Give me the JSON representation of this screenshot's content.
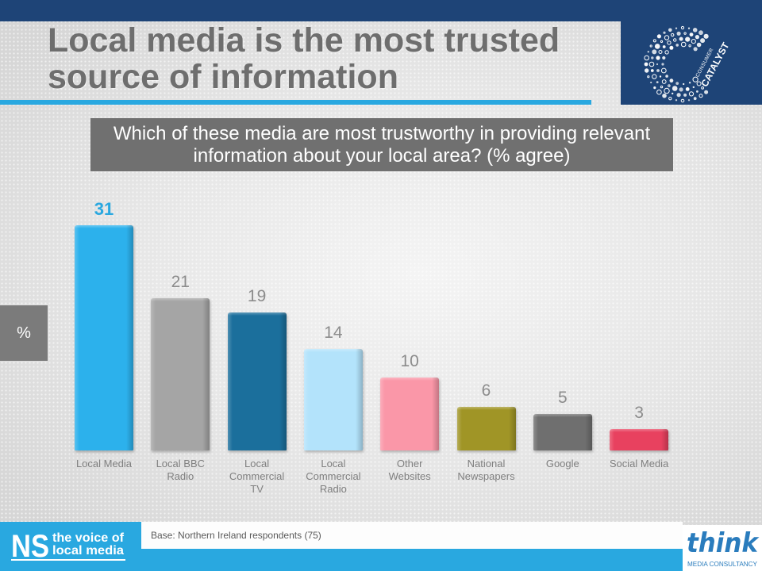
{
  "header": {
    "title": "Local media is the most trusted source of information"
  },
  "base_note": "Base: Northern Ireland respondents (75)",
  "logos": {
    "consumer_catalyst": {
      "line1": "CONSUMER",
      "line2": "CATALYST"
    },
    "ns": {
      "mark": "NS",
      "line1": "the voice of",
      "line2": "local media"
    },
    "think": {
      "mark": "think",
      "tagline": "MEDIA CONSULTANCY"
    }
  },
  "colors": {
    "brand_navy": "#1e4477",
    "brand_cyan": "#29a8e0",
    "title_gray": "#6e6e6e",
    "panel_gray": "#707070",
    "value_highlight": "#29a8e0",
    "value_label": "#8c8c8c",
    "think_blue": "#2a7cbd"
  },
  "chart_data": {
    "type": "bar",
    "title": "Which of these media are most trustworthy in providing relevant information about your local area? (% agree)",
    "xlabel": "",
    "ylabel": "%",
    "categories": [
      "Local Media",
      "Local BBC Radio",
      "Local Commercial TV",
      "Local Commercial Radio",
      "Other Websites",
      "National Newspapers",
      "Google",
      "Social Media"
    ],
    "values": [
      31,
      21,
      19,
      14,
      10,
      6,
      5,
      3
    ],
    "bar_colors": [
      "#2cb1ec",
      "#a5a5a5",
      "#1b6f9c",
      "#b3e3fb",
      "#fa97a8",
      "#a09526",
      "#6f6f6f",
      "#e8415f"
    ],
    "legend": false,
    "grid": false
  }
}
